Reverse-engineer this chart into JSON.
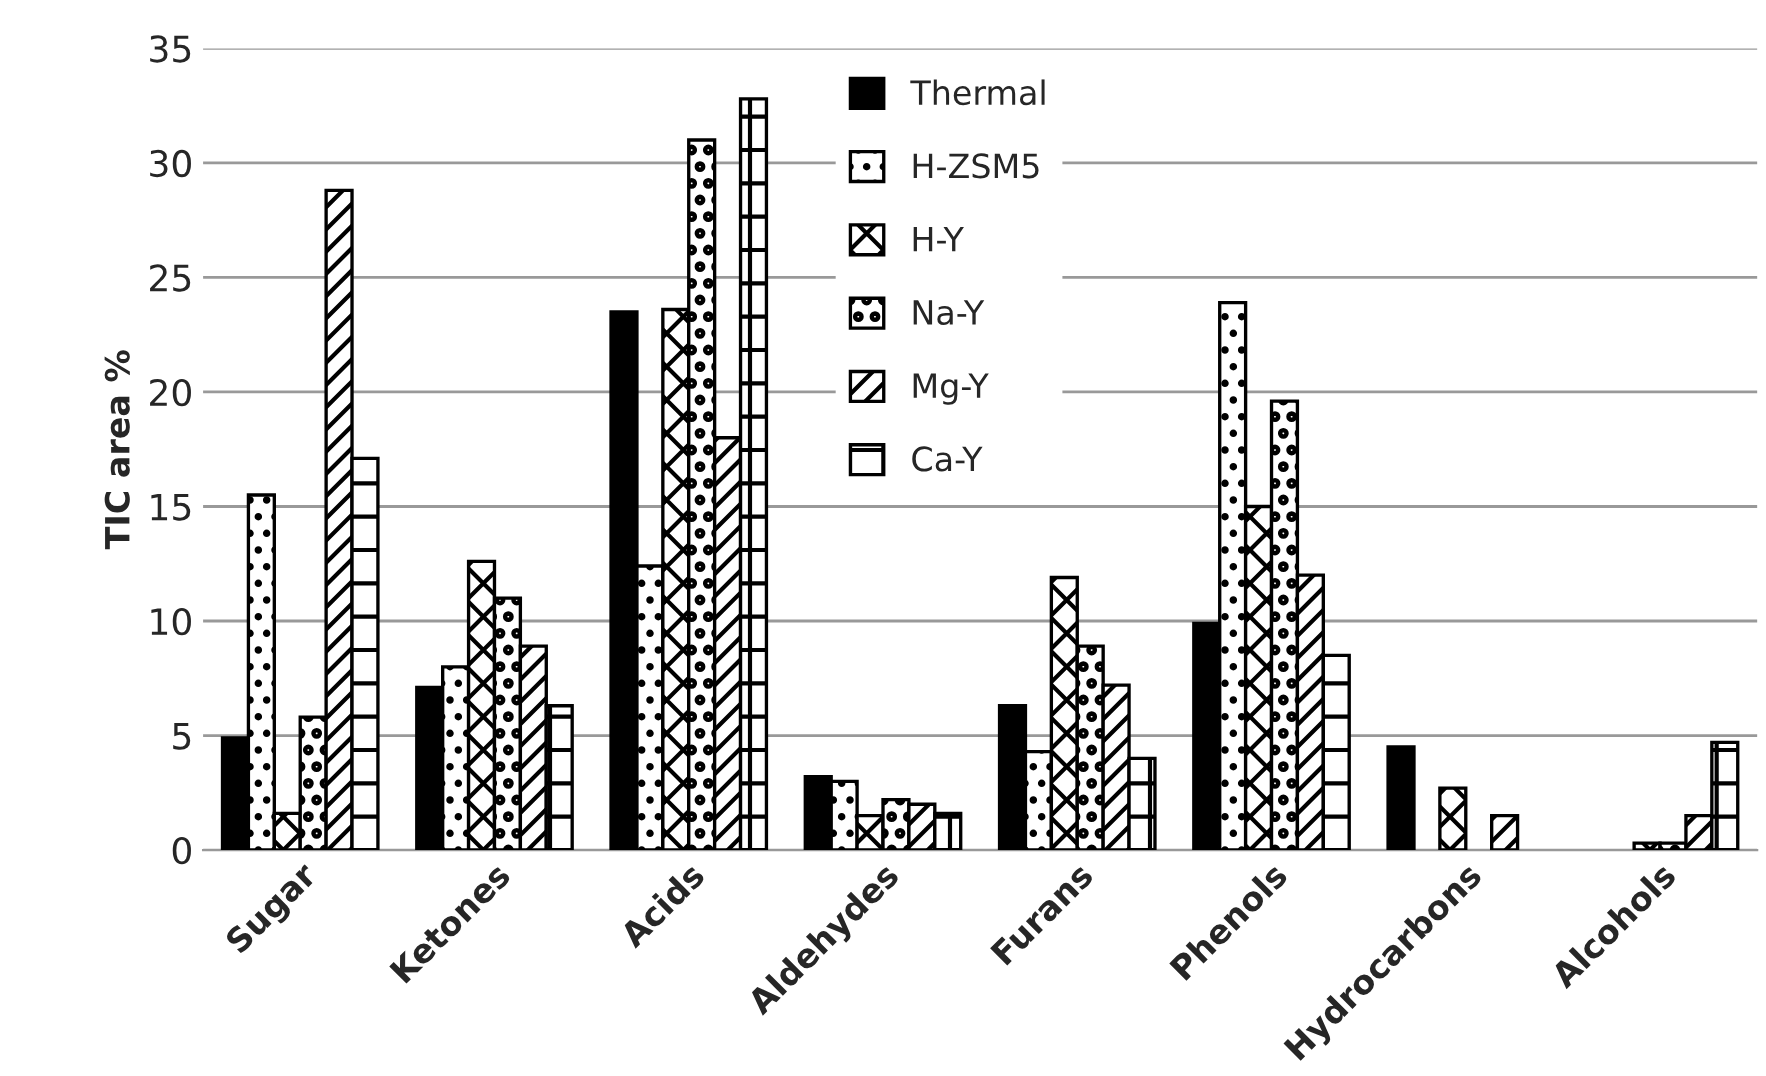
{
  "chart_data": {
    "type": "bar",
    "ylabel": "TIC area %",
    "categories": [
      "Sugar",
      "Ketones",
      "Acids",
      "Aldehydes",
      "Furans",
      "Phenols",
      "Hydrocarbons",
      "Alcohols"
    ],
    "series": [
      {
        "name": "Thermal",
        "color": "#000000",
        "values": [
          4.9,
          7.1,
          23.5,
          3.2,
          6.3,
          9.9,
          4.5,
          null
        ]
      },
      {
        "name": "H-ZSM5",
        "color": "#000000",
        "values": [
          15.5,
          8.0,
          12.4,
          3.0,
          4.3,
          23.9,
          null,
          null
        ]
      },
      {
        "name": "H-Y",
        "color": "#000000",
        "values": [
          1.6,
          12.6,
          23.6,
          1.5,
          11.9,
          15.0,
          2.7,
          0.3
        ]
      },
      {
        "name": "Na-Y",
        "color": "#000000",
        "values": [
          5.8,
          11.0,
          31.0,
          2.2,
          8.9,
          19.6,
          null,
          0.3
        ]
      },
      {
        "name": "Mg-Y",
        "color": "#000000",
        "values": [
          28.8,
          8.9,
          18.0,
          2.0,
          7.2,
          12.0,
          1.5,
          1.5
        ]
      },
      {
        "name": "Ca-Y",
        "color": "#000000",
        "values": [
          17.1,
          6.3,
          32.8,
          1.6,
          4.0,
          8.5,
          null,
          4.7
        ]
      }
    ],
    "ylim": [
      0,
      35
    ],
    "yticks": [
      0,
      5,
      10,
      15,
      20,
      25,
      30,
      35
    ],
    "grid": "y",
    "legend": "top"
  }
}
